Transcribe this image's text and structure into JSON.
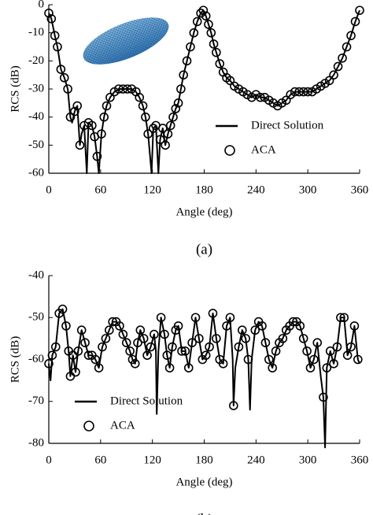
{
  "chart_data": [
    {
      "type": "line",
      "xlabel": "Angle (deg)",
      "ylabel": "RCS (dB)",
      "caption": "(a)",
      "legend": "lower right",
      "xlim": [
        0,
        360
      ],
      "ylim": [
        -60,
        0
      ],
      "xticks": [
        0,
        60,
        120,
        180,
        240,
        300,
        360
      ],
      "yticks": [
        -60,
        -50,
        -40,
        -30,
        -20,
        -10,
        0
      ],
      "series": [
        {
          "name": "Direct Solution",
          "color": "#000000",
          "marker": "none",
          "x": [
            0,
            3,
            7,
            10,
            14,
            18,
            22,
            25,
            27,
            30,
            33,
            36,
            38,
            41,
            44,
            46,
            50,
            53,
            56,
            58,
            61,
            64,
            67,
            71,
            76,
            81,
            86,
            91,
            96,
            101,
            105,
            109,
            112,
            115,
            119,
            121,
            124,
            127,
            129,
            132,
            135,
            138,
            141,
            144,
            147,
            150,
            153,
            156,
            160,
            164,
            168,
            172,
            176,
            179,
            182,
            185,
            188,
            191,
            194,
            198,
            202,
            206,
            210,
            215,
            220,
            225,
            230,
            235,
            240,
            245,
            250,
            255,
            260,
            265,
            270,
            275,
            280,
            285,
            290,
            295,
            300,
            305,
            310,
            315,
            320,
            325,
            330,
            335,
            340,
            345,
            350,
            355,
            360
          ],
          "values": [
            -3,
            -5,
            -11,
            -15,
            -23,
            -26,
            -30,
            -40,
            -42,
            -38,
            -36,
            -50,
            -46,
            -43,
            -60,
            -42,
            -43,
            -47,
            -54,
            -60,
            -46,
            -40,
            -36,
            -33,
            -31,
            -30,
            -30,
            -30,
            -30,
            -31,
            -33,
            -36,
            -40,
            -46,
            -60,
            -44,
            -43,
            -60,
            -48,
            -44,
            -50,
            -46,
            -43,
            -40,
            -37,
            -35,
            -30,
            -25,
            -20,
            -15,
            -10,
            -6,
            -3,
            -2,
            -4,
            -7,
            -10,
            -14,
            -17,
            -21,
            -24,
            -26,
            -27,
            -29,
            -30,
            -31,
            -32,
            -33,
            -32,
            -33,
            -33,
            -34,
            -35,
            -36,
            -35,
            -34,
            -32,
            -31,
            -31,
            -31,
            -31,
            -31,
            -30,
            -29,
            -28,
            -27,
            -25,
            -22,
            -19,
            -15,
            -11,
            -6,
            -2
          ]
        },
        {
          "name": "ACA",
          "color": "#000000",
          "marker": "circle",
          "x": [
            0,
            3,
            7,
            10,
            14,
            18,
            22,
            25,
            30,
            33,
            36,
            41,
            46,
            50,
            53,
            56,
            61,
            64,
            67,
            71,
            76,
            81,
            86,
            91,
            96,
            101,
            105,
            109,
            112,
            115,
            121,
            124,
            129,
            132,
            135,
            138,
            141,
            144,
            147,
            150,
            153,
            156,
            160,
            164,
            168,
            172,
            176,
            179,
            182,
            185,
            188,
            191,
            194,
            198,
            202,
            206,
            210,
            215,
            220,
            225,
            230,
            235,
            240,
            245,
            250,
            255,
            260,
            265,
            270,
            275,
            280,
            285,
            290,
            295,
            300,
            305,
            310,
            315,
            320,
            325,
            330,
            335,
            340,
            345,
            350,
            355,
            360
          ],
          "values": [
            -3,
            -5,
            -11,
            -15,
            -23,
            -26,
            -30,
            -40,
            -38,
            -36,
            -50,
            -43,
            -42,
            -43,
            -47,
            -54,
            -46,
            -40,
            -36,
            -33,
            -31,
            -30,
            -30,
            -30,
            -30,
            -31,
            -33,
            -36,
            -40,
            -46,
            -44,
            -43,
            -48,
            -44,
            -50,
            -46,
            -43,
            -40,
            -37,
            -35,
            -30,
            -25,
            -20,
            -15,
            -10,
            -6,
            -3,
            -2,
            -4,
            -7,
            -10,
            -14,
            -17,
            -21,
            -24,
            -26,
            -27,
            -29,
            -30,
            -31,
            -32,
            -33,
            -32,
            -33,
            -33,
            -34,
            -35,
            -36,
            -35,
            -34,
            -32,
            -31,
            -31,
            -31,
            -31,
            -31,
            -30,
            -29,
            -28,
            -27,
            -25,
            -22,
            -19,
            -15,
            -11,
            -6,
            -2
          ]
        }
      ]
    },
    {
      "type": "line",
      "xlabel": "Angle (deg)",
      "ylabel": "RCS (dB)",
      "caption": "(b)",
      "legend": "lower left",
      "xlim": [
        0,
        360
      ],
      "ylim": [
        -80,
        -40
      ],
      "xticks": [
        0,
        60,
        120,
        180,
        240,
        300,
        360
      ],
      "yticks": [
        -80,
        -70,
        -60,
        -50,
        -40
      ],
      "series": [
        {
          "name": "Direct Solution",
          "color": "#000000",
          "marker": "none",
          "x": [
            0,
            2,
            4,
            8,
            12,
            16,
            20,
            23,
            25,
            28,
            31,
            34,
            38,
            42,
            46,
            50,
            54,
            58,
            62,
            66,
            70,
            74,
            78,
            82,
            86,
            90,
            94,
            97,
            100,
            103,
            106,
            110,
            114,
            118,
            122,
            124,
            125,
            127,
            130,
            134,
            137,
            140,
            143,
            147,
            150,
            154,
            158,
            162,
            166,
            170,
            174,
            178,
            182,
            186,
            190,
            194,
            198,
            202,
            206,
            210,
            213,
            214,
            216,
            220,
            224,
            228,
            231,
            233,
            235,
            239,
            243,
            247,
            251,
            255,
            259,
            263,
            267,
            271,
            275,
            279,
            283,
            287,
            291,
            295,
            299,
            303,
            307,
            311,
            315,
            318,
            320,
            322,
            326,
            330,
            334,
            338,
            342,
            346,
            350,
            354,
            358,
            360
          ],
          "values": [
            -61,
            -65,
            -59,
            -57,
            -49,
            -48,
            -52,
            -58,
            -64,
            -59,
            -63,
            -58,
            -53,
            -56,
            -59,
            -59,
            -60,
            -62,
            -57,
            -55,
            -53,
            -51,
            -51,
            -52,
            -54,
            -56,
            -58,
            -60,
            -61,
            -56,
            -53,
            -55,
            -59,
            -57,
            -54,
            -58,
            -73,
            -58,
            -50,
            -54,
            -59,
            -62,
            -57,
            -53,
            -52,
            -58,
            -58,
            -62,
            -56,
            -50,
            -55,
            -60,
            -59,
            -57,
            -49,
            -55,
            -60,
            -61,
            -52,
            -50,
            -60,
            -71,
            -62,
            -57,
            -53,
            -55,
            -60,
            -72,
            -60,
            -53,
            -51,
            -52,
            -56,
            -60,
            -62,
            -58,
            -56,
            -55,
            -53,
            -52,
            -51,
            -51,
            -52,
            -55,
            -58,
            -62,
            -60,
            -56,
            -64,
            -69,
            -81,
            -62,
            -58,
            -61,
            -57,
            -50,
            -50,
            -59,
            -57,
            -52,
            -60,
            -61
          ]
        },
        {
          "name": "ACA",
          "color": "#000000",
          "marker": "circle",
          "x": [
            0,
            4,
            8,
            12,
            16,
            20,
            23,
            25,
            28,
            31,
            34,
            38,
            42,
            46,
            50,
            54,
            58,
            62,
            66,
            70,
            74,
            78,
            82,
            86,
            90,
            94,
            97,
            100,
            103,
            106,
            110,
            114,
            118,
            122,
            130,
            134,
            137,
            140,
            143,
            147,
            150,
            154,
            158,
            162,
            166,
            170,
            174,
            178,
            182,
            186,
            190,
            194,
            198,
            202,
            206,
            210,
            214,
            220,
            224,
            228,
            231,
            239,
            243,
            247,
            251,
            255,
            259,
            263,
            267,
            271,
            275,
            279,
            283,
            287,
            291,
            295,
            299,
            303,
            307,
            311,
            318,
            322,
            326,
            330,
            334,
            338,
            342,
            346,
            350,
            354,
            358
          ],
          "values": [
            -61,
            -59,
            -57,
            -49,
            -48,
            -52,
            -58,
            -64,
            -59,
            -63,
            -58,
            -53,
            -56,
            -59,
            -59,
            -60,
            -62,
            -57,
            -55,
            -53,
            -51,
            -51,
            -52,
            -54,
            -56,
            -58,
            -60,
            -61,
            -56,
            -53,
            -55,
            -59,
            -57,
            -54,
            -50,
            -54,
            -59,
            -62,
            -57,
            -53,
            -52,
            -58,
            -58,
            -62,
            -56,
            -50,
            -55,
            -60,
            -59,
            -57,
            -49,
            -55,
            -60,
            -61,
            -52,
            -50,
            -71,
            -57,
            -53,
            -55,
            -60,
            -53,
            -51,
            -52,
            -56,
            -60,
            -62,
            -58,
            -56,
            -55,
            -53,
            -52,
            -51,
            -51,
            -52,
            -55,
            -58,
            -62,
            -60,
            -56,
            -69,
            -62,
            -58,
            -61,
            -57,
            -50,
            -50,
            -59,
            -57,
            -52,
            -60
          ]
        }
      ]
    }
  ]
}
